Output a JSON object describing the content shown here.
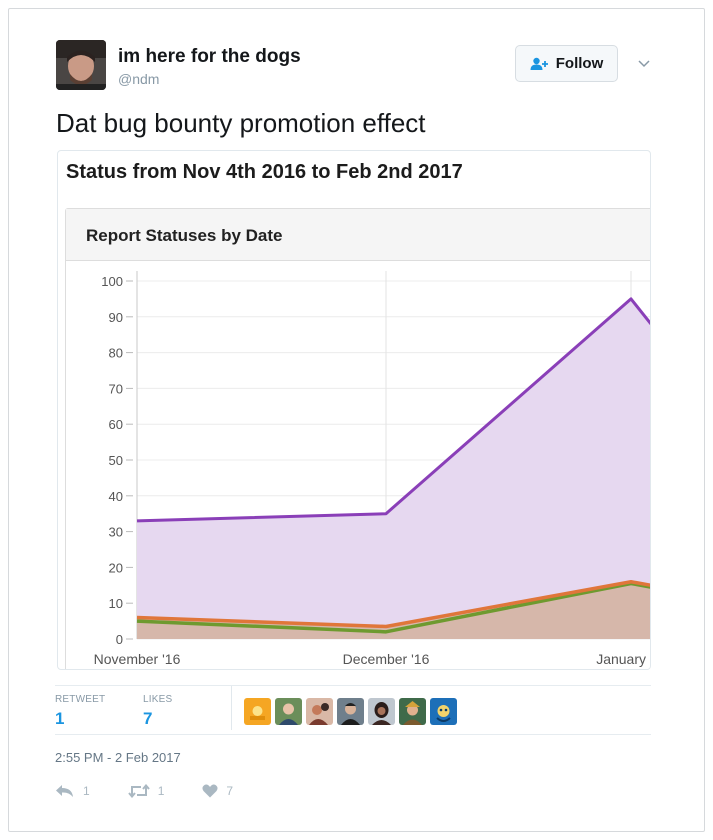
{
  "tweet": {
    "user_name": "im here for the dogs",
    "user_handle": "@ndm",
    "follow_label": "Follow",
    "text": "Dat bug bounty promotion effect",
    "retweet_label": "RETWEET",
    "retweet_count": "1",
    "likes_label": "LIKES",
    "likes_count": "7",
    "timestamp": "2:55 PM - 2 Feb 2017",
    "reply_count": "1",
    "retweet_action_count": "1",
    "like_action_count": "7"
  },
  "card": {
    "title": "Status from Nov 4th 2016 to Feb 2nd 2017",
    "panel_title": "Report Statuses by Date"
  },
  "icons": {
    "follow": "person-plus-icon",
    "caret": "chevron-down-icon",
    "reply": "reply-icon",
    "retweet": "retweet-icon",
    "like": "heart-icon"
  },
  "colors": {
    "accent": "#1b95e0",
    "series_purple": "#8a3fb8",
    "series_orange": "#e0763a",
    "series_green": "#6e9a2f"
  },
  "chart_data": {
    "type": "area",
    "categories": [
      "November '16",
      "December '16",
      "January"
    ],
    "ylim": [
      0,
      100
    ],
    "yticks": [
      0,
      10,
      20,
      30,
      40,
      50,
      60,
      70,
      80,
      90,
      100
    ],
    "grid": true,
    "series": [
      {
        "x": [
          0,
          1,
          2,
          2.08
        ],
        "values": [
          33,
          35,
          95,
          88
        ],
        "color": "#8a3fb8",
        "fill": "#e6d8f0"
      },
      {
        "x": [
          0,
          1,
          2,
          2.08
        ],
        "values": [
          6,
          3.5,
          16,
          15
        ],
        "color": "#e0763a",
        "fill": "#d6b7aa"
      },
      {
        "x": [
          0,
          1,
          2,
          2.08
        ],
        "values": [
          5,
          2,
          15.5,
          14.5
        ],
        "color": "#6e9a2f",
        "fill": "none"
      }
    ]
  }
}
